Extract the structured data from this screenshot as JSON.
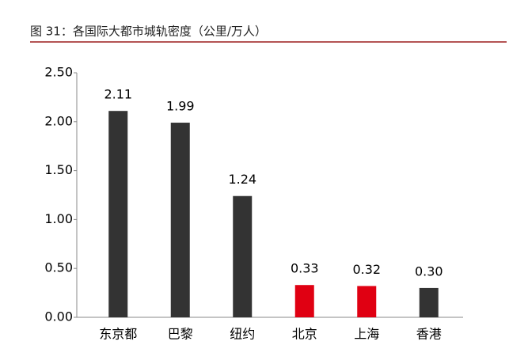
{
  "chart_data": {
    "type": "bar",
    "title": "图 31：各国际大都市城轨密度（公里/万人）",
    "categories": [
      "东京都",
      "巴黎",
      "纽约",
      "北京",
      "上海",
      "香港"
    ],
    "values": [
      2.11,
      1.99,
      1.24,
      0.33,
      0.32,
      0.3
    ],
    "value_labels": [
      "2.11",
      "1.99",
      "1.24",
      "0.33",
      "0.32",
      "0.30"
    ],
    "colors": [
      "#333333",
      "#333333",
      "#333333",
      "#e00012",
      "#e00012",
      "#333333"
    ],
    "ylim": [
      0,
      2.5
    ],
    "yticks": [
      {
        "value": 0,
        "label": "0.00"
      },
      {
        "value": 0.5,
        "label": "0.50"
      },
      {
        "value": 1,
        "label": "1.00"
      },
      {
        "value": 1.5,
        "label": "1.50"
      },
      {
        "value": 2,
        "label": "2.00"
      },
      {
        "value": 2.5,
        "label": "2.50"
      }
    ],
    "grid": false
  }
}
